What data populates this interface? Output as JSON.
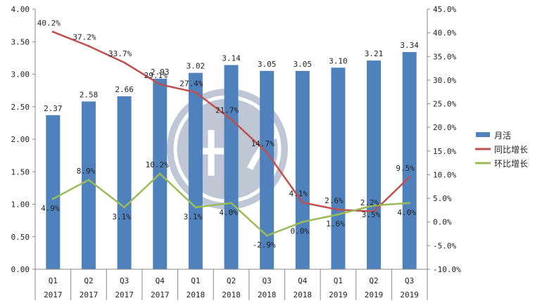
{
  "chart_data": {
    "type": "bar+line",
    "title": "",
    "categories": [
      {
        "q": "Q1",
        "y": "2017"
      },
      {
        "q": "Q2",
        "y": "2017"
      },
      {
        "q": "Q3",
        "y": "2017"
      },
      {
        "q": "Q4",
        "y": "2017"
      },
      {
        "q": "Q1",
        "y": "2018"
      },
      {
        "q": "Q2",
        "y": "2018"
      },
      {
        "q": "Q3",
        "y": "2018"
      },
      {
        "q": "Q4",
        "y": "2018"
      },
      {
        "q": "Q1",
        "y": "2019"
      },
      {
        "q": "Q2",
        "y": "2019"
      },
      {
        "q": "Q3",
        "y": "2019"
      }
    ],
    "left_axis": {
      "min": 0,
      "max": 4,
      "step": 0.5,
      "tick_labels": [
        "0.00",
        "0.50",
        "1.00",
        "1.50",
        "2.00",
        "2.50",
        "3.00",
        "3.50",
        "4.00"
      ]
    },
    "right_axis": {
      "min": -10,
      "max": 45,
      "step": 5,
      "tick_labels": [
        "-10.0%",
        "-5.0%",
        "0.0%",
        "5.0%",
        "10.0%",
        "15.0%",
        "20.0%",
        "25.0%",
        "30.0%",
        "35.0%",
        "40.0%",
        "45.0%"
      ]
    },
    "series": [
      {
        "name": "月活",
        "kind": "bar",
        "axis": "left",
        "color": "#4f81bd",
        "values": [
          2.37,
          2.58,
          2.66,
          2.93,
          3.02,
          3.14,
          3.05,
          3.05,
          3.1,
          3.21,
          3.34
        ],
        "labels": [
          "2.37",
          "2.58",
          "2.66",
          "2.93",
          "3.02",
          "3.14",
          "3.05",
          "3.05",
          "3.10",
          "3.21",
          "3.34"
        ]
      },
      {
        "name": "同比增长",
        "kind": "line",
        "axis": "right",
        "color": "#c0504d",
        "values": [
          40.2,
          37.2,
          33.7,
          29.1,
          27.4,
          21.7,
          14.7,
          4.1,
          2.6,
          2.2,
          9.5
        ],
        "labels": [
          "40.2%",
          "37.2%",
          "33.7%",
          "29.1%",
          "27.4%",
          "21.7%",
          "14.7%",
          "4.1%",
          "2.6%",
          "2.2%",
          "9.5%"
        ]
      },
      {
        "name": "环比增长",
        "kind": "line",
        "axis": "right",
        "color": "#9bbb59",
        "values": [
          4.9,
          8.9,
          3.1,
          10.2,
          3.1,
          4.0,
          -2.9,
          0.0,
          1.6,
          3.5,
          4.0
        ],
        "labels": [
          "4.9%",
          "8.9%",
          "3.1%",
          "10.2%",
          "3.1%",
          "4.0%",
          "-2.9%",
          "0.0%",
          "1.6%",
          "3.5%",
          "4.0%"
        ]
      }
    ],
    "legend_position": "right",
    "grid": false
  }
}
